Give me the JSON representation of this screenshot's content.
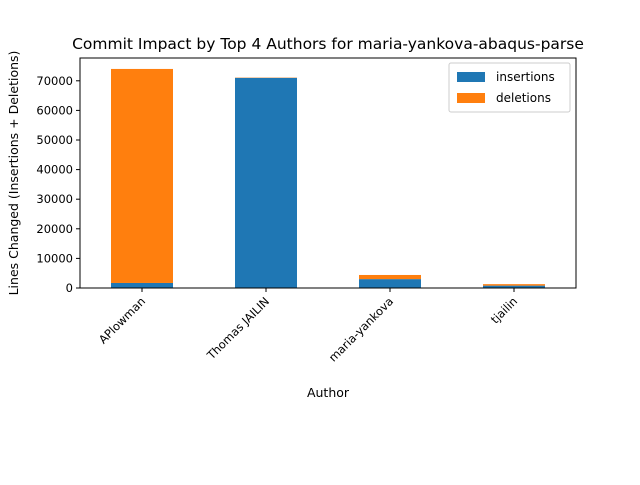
{
  "chart_data": {
    "type": "bar",
    "stacked": true,
    "title": "Commit Impact by Top 4 Authors for maria-yankova-abaqus-parse",
    "xlabel": "Author",
    "ylabel": "Lines Changed (Insertions + Deletions)",
    "categories": [
      "APlowman",
      "Thomas JAILIN",
      "maria-yankova",
      "tjailin"
    ],
    "series": [
      {
        "name": "insertions",
        "color": "#1f77b4",
        "values": [
          1700,
          71000,
          3000,
          800
        ]
      },
      {
        "name": "deletions",
        "color": "#ff7f0e",
        "values": [
          72300,
          100,
          1400,
          500
        ]
      }
    ],
    "ylim": [
      0,
      77700
    ],
    "yticks": [
      0,
      10000,
      20000,
      30000,
      40000,
      50000,
      60000,
      70000
    ],
    "ytick_labels": [
      "0",
      "10000",
      "20000",
      "30000",
      "40000",
      "50000",
      "60000",
      "70000"
    ],
    "grid": false,
    "legend_position": "top-right"
  }
}
